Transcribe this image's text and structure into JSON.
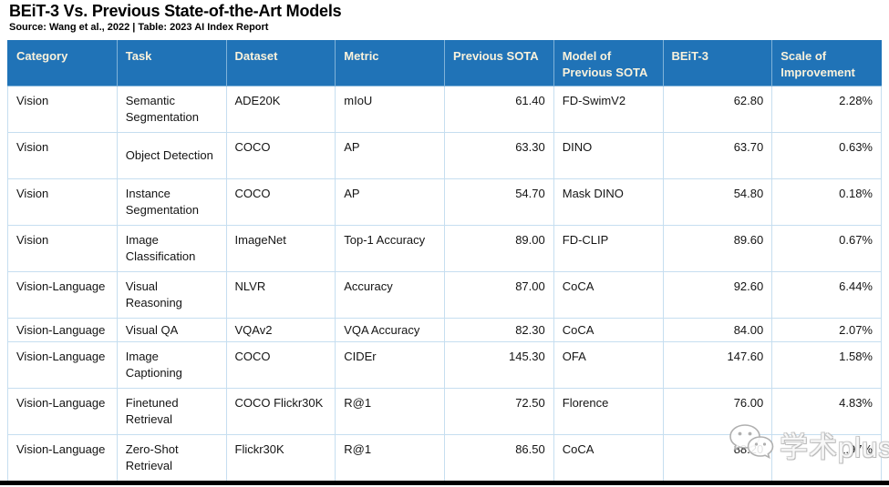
{
  "chart_data": {
    "type": "table",
    "title": "BEiT-3 Vs. Previous State-of-the-Art Models",
    "source": "Source: Wang et al., 2022 | Table: 2023 AI Index Report",
    "columns": [
      "Category",
      "Task",
      "Dataset",
      "Metric",
      "Previous SOTA",
      "Model of Previous SOTA",
      "BEiT-3",
      "Scale of Improvement"
    ],
    "column_keys": [
      "category",
      "task",
      "dataset",
      "metric",
      "previous_sota",
      "model_of_previous_sota",
      "beit3",
      "scale_of_improvement"
    ],
    "rows": [
      {
        "category": "Vision",
        "task": "Semantic Segmentation",
        "dataset": "ADE20K",
        "metric": "mIoU",
        "previous_sota": "61.40",
        "model_of_previous_sota": "FD-SwimV2",
        "beit3": "62.80",
        "scale_of_improvement": "2.28%"
      },
      {
        "category": "Vision",
        "task": "Object Detection",
        "dataset": "COCO",
        "metric": "AP",
        "previous_sota": "63.30",
        "model_of_previous_sota": "DINO",
        "beit3": "63.70",
        "scale_of_improvement": "0.63%"
      },
      {
        "category": "Vision",
        "task": "Instance Segmentation",
        "dataset": "COCO",
        "metric": "AP",
        "previous_sota": "54.70",
        "model_of_previous_sota": "Mask DINO",
        "beit3": "54.80",
        "scale_of_improvement": "0.18%"
      },
      {
        "category": "Vision",
        "task": "Image Classification",
        "dataset": "ImageNet",
        "metric": "Top-1 Accuracy",
        "previous_sota": "89.00",
        "model_of_previous_sota": "FD-CLIP",
        "beit3": "89.60",
        "scale_of_improvement": "0.67%"
      },
      {
        "category": "Vision-Language",
        "task": "Visual Reasoning",
        "dataset": "NLVR",
        "metric": "Accuracy",
        "previous_sota": "87.00",
        "model_of_previous_sota": "CoCA",
        "beit3": "92.60",
        "scale_of_improvement": "6.44%"
      },
      {
        "category": "Vision-Language",
        "task": "Visual QA",
        "dataset": "VQAv2",
        "metric": "VQA Accuracy",
        "previous_sota": "82.30",
        "model_of_previous_sota": "CoCA",
        "beit3": "84.00",
        "scale_of_improvement": "2.07%"
      },
      {
        "category": "Vision-Language",
        "task": "Image Captioning",
        "dataset": "COCO",
        "metric": "CIDEr",
        "previous_sota": "145.30",
        "model_of_previous_sota": "OFA",
        "beit3": "147.60",
        "scale_of_improvement": "1.58%"
      },
      {
        "category": "Vision-Language",
        "task": "Finetuned Retrieval",
        "dataset": "COCO Flickr30K",
        "metric": "R@1",
        "previous_sota": "72.50",
        "model_of_previous_sota": "Florence",
        "beit3": "76.00",
        "scale_of_improvement": "4.83%"
      },
      {
        "category": "Vision-Language",
        "task": "Zero-Shot Retrieval",
        "dataset": "Flickr30K",
        "metric": "R@1",
        "previous_sota": "86.50",
        "model_of_previous_sota": "CoCA",
        "beit3": "88.20",
        "scale_of_improvement": "1.97%"
      }
    ]
  },
  "watermark": {
    "text": "学术plus",
    "icon": "wechat-icon"
  },
  "colors": {
    "header_bg": "#2073B7",
    "header_text": "#F9F2DC",
    "grid": "#C6DEF0",
    "bottom_bar": "#000000"
  }
}
